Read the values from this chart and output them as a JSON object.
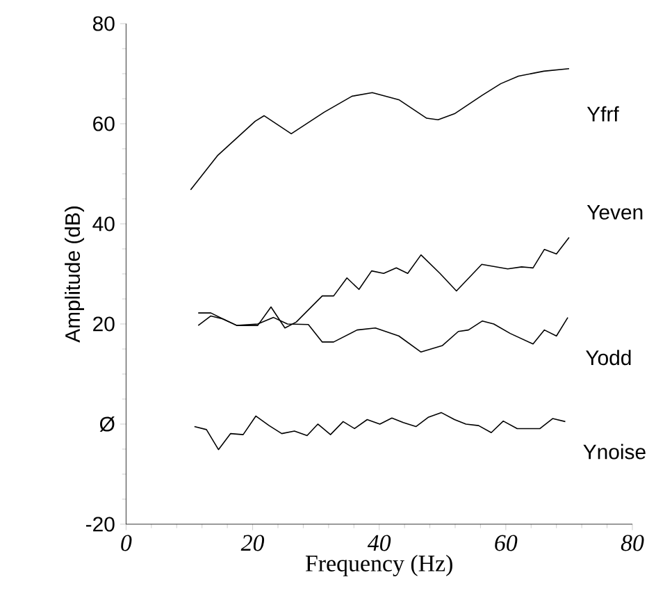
{
  "chart_data": {
    "type": "line",
    "xlabel": "Frequency  (Hz)",
    "ylabel": "Amplitude (dB)",
    "xlim": [
      0,
      80
    ],
    "xticks": [
      0,
      20,
      40,
      60,
      80
    ],
    "ylim": [
      -20,
      80
    ],
    "yticks": [
      -20,
      {
        "value": 0,
        "label": "Ø"
      },
      20,
      40,
      60,
      80
    ],
    "grid": false,
    "legend": false,
    "marker": "none",
    "line_style": "solid",
    "series": [
      {
        "name": "Yfrf",
        "color": "#000000",
        "x": [
          10.2,
          14.5,
          20.4,
          21.8,
          26.1,
          31.3,
          35.7,
          38.9,
          43.1,
          47.5,
          49.3,
          51.9,
          56.3,
          59.2,
          62,
          66,
          70
        ],
        "values": [
          46.8,
          53.7,
          60.5,
          61.6,
          58,
          62.3,
          65.5,
          66.2,
          64.8,
          61.1,
          60.8,
          62,
          65.7,
          68,
          69.5,
          70.5,
          71
        ]
      },
      {
        "name": "Yeven",
        "color": "#000000",
        "x": [
          11.4,
          13.4,
          15.3,
          17.5,
          20.8,
          22.9,
          25.1,
          26.9,
          31,
          32.8,
          34.9,
          36.8,
          38.8,
          40.7,
          42.7,
          44.5,
          46.6,
          49.6,
          52.2,
          56.2,
          60.3,
          62.5,
          64.3,
          66.1,
          68,
          70
        ],
        "values": [
          19.7,
          21.6,
          21,
          19.7,
          19.7,
          23.4,
          19.2,
          20.4,
          25.6,
          25.6,
          29.2,
          26.9,
          30.6,
          30.1,
          31.2,
          30.1,
          33.8,
          30.1,
          26.6,
          31.9,
          31,
          31.4,
          31.2,
          34.9,
          34,
          37.3
        ]
      },
      {
        "name": "Yodd",
        "color": "#000000",
        "x": [
          11.4,
          13.4,
          15.3,
          17.5,
          20.8,
          23.3,
          25.5,
          28.8,
          31,
          32.8,
          36.5,
          39.4,
          43.1,
          46.6,
          50,
          52.5,
          54.1,
          56.3,
          58.1,
          60.7,
          64.3,
          66.1,
          68,
          69.8
        ],
        "values": [
          22.2,
          22.2,
          21,
          19.7,
          20,
          21.3,
          20,
          19.9,
          16.4,
          16.4,
          18.8,
          19.2,
          17.6,
          14.4,
          15.7,
          18.5,
          18.8,
          20.6,
          20,
          18.1,
          16,
          18.8,
          17.6,
          21.3
        ]
      },
      {
        "name": "Ynoise",
        "color": "#000000",
        "x": [
          10.8,
          12.7,
          14.6,
          16.5,
          18.5,
          20.5,
          22.6,
          24.6,
          26.6,
          28.6,
          30.3,
          32.3,
          34.3,
          36.1,
          38.1,
          40.1,
          42,
          43.8,
          45.8,
          47.8,
          49.8,
          51.9,
          53.7,
          55.7,
          57.7,
          59.6,
          61.8,
          65.4,
          67.4,
          69.4
        ],
        "values": [
          -0.5,
          -1.1,
          -5.1,
          -1.9,
          -2.1,
          1.6,
          -0.3,
          -1.9,
          -1.4,
          -2.3,
          0,
          -2.1,
          0.5,
          -0.9,
          0.9,
          0,
          1.2,
          0.3,
          -0.5,
          1.4,
          2.3,
          0.9,
          0,
          -0.3,
          -1.7,
          0.6,
          -0.9,
          -0.9,
          1.1,
          0.5
        ]
      }
    ]
  }
}
